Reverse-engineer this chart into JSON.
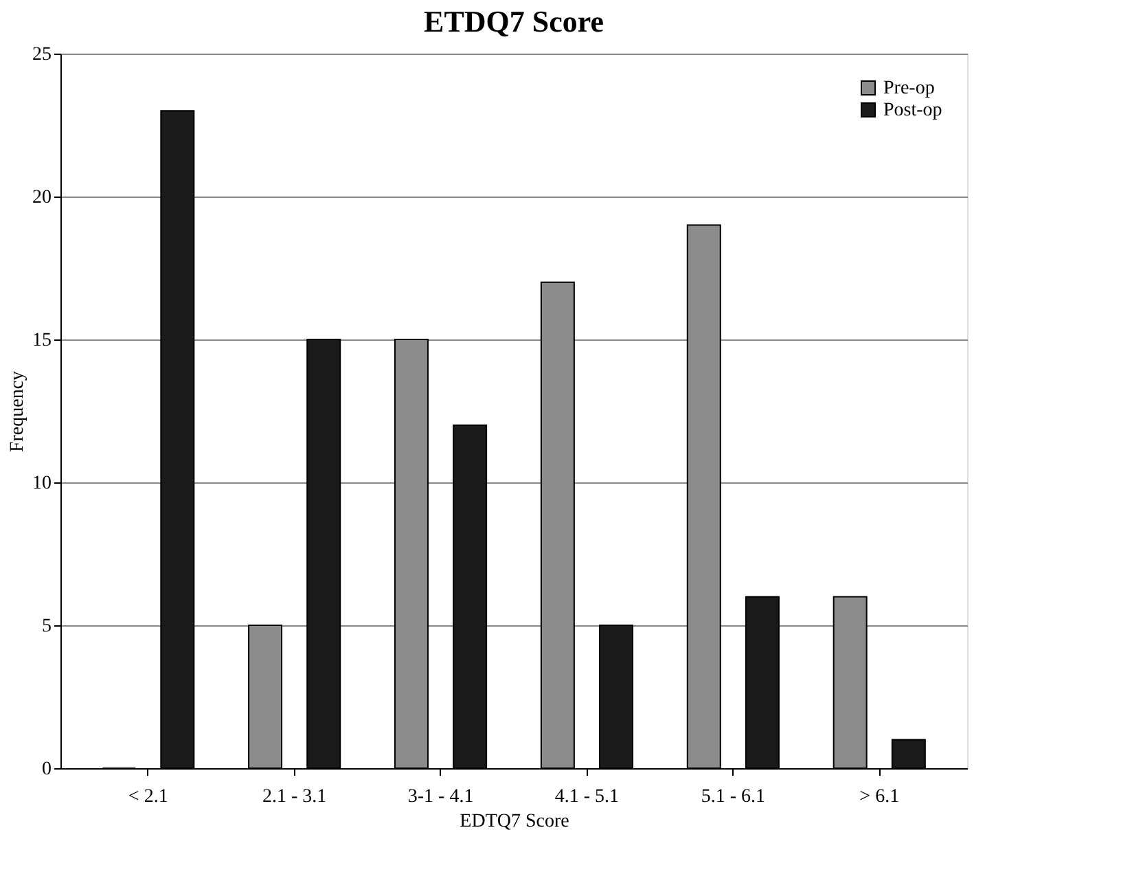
{
  "chart_data": {
    "type": "bar",
    "title": "ETDQ7 Score",
    "xlabel": "EDTQ7 Score",
    "ylabel": "Frequency",
    "categories": [
      "< 2.1",
      "2.1 - 3.1",
      "3-1 - 4.1",
      "4.1 - 5.1",
      "5.1 - 6.1",
      "> 6.1"
    ],
    "series": [
      {
        "name": "Pre-op",
        "color": "#8c8c8c",
        "values": [
          0,
          5,
          15,
          17,
          19,
          6
        ]
      },
      {
        "name": "Post-op",
        "color": "#1a1a1a",
        "values": [
          23,
          15,
          12,
          5,
          6,
          1
        ]
      }
    ],
    "ylim": [
      0,
      25
    ],
    "yticks": [
      0,
      5,
      10,
      15,
      20,
      25
    ],
    "grid": "y",
    "legend": "top right"
  }
}
